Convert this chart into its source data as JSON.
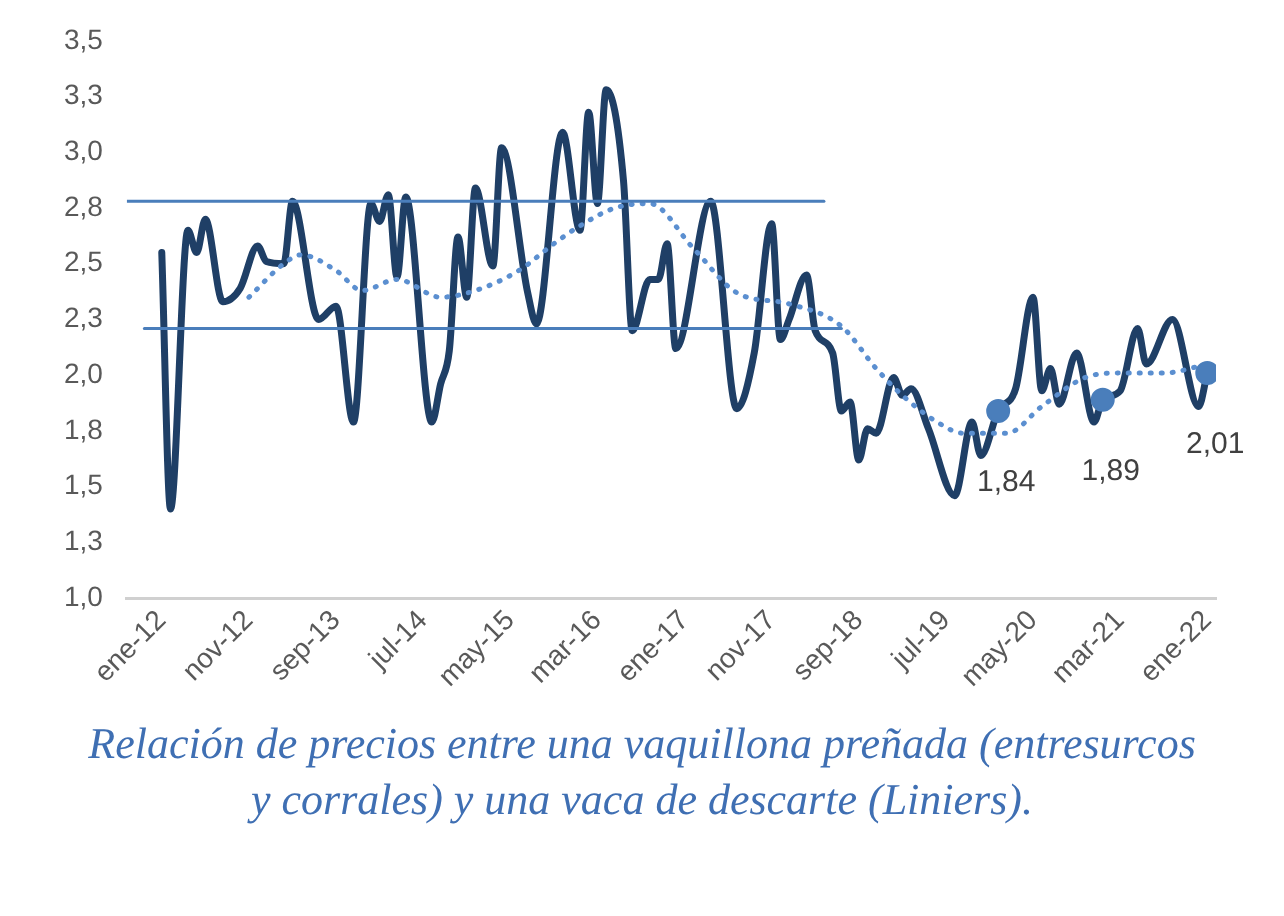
{
  "chart_data": {
    "type": "line",
    "title": "Relación de precios entre una vaquillona preñada (entresurcos y corrales) y una vaca de descarte (Liniers).",
    "xlim": [
      "2011-09",
      "2022-02"
    ],
    "xticks": [
      {
        "value": "2012-01",
        "label": "ene-12"
      },
      {
        "value": "2012-11",
        "label": "nov-12"
      },
      {
        "value": "2013-09",
        "label": "sep-13"
      },
      {
        "value": "2014-07",
        "label": "jul-14"
      },
      {
        "value": "2015-05",
        "label": "may-15"
      },
      {
        "value": "2016-03",
        "label": "mar-16"
      },
      {
        "value": "2017-01",
        "label": "ene-17"
      },
      {
        "value": "2017-11",
        "label": "nov-17"
      },
      {
        "value": "2018-09",
        "label": "sep-18"
      },
      {
        "value": "2019-07",
        "label": "jul-19"
      },
      {
        "value": "2020-05",
        "label": "may-20"
      },
      {
        "value": "2021-03",
        "label": "mar-21"
      },
      {
        "value": "2022-01",
        "label": "ene-22"
      }
    ],
    "ylim": [
      1.0,
      3.5
    ],
    "yticks": [
      {
        "value": 1.0,
        "label": "1,0"
      },
      {
        "value": 1.25,
        "label": "1,3"
      },
      {
        "value": 1.5,
        "label": "1,5"
      },
      {
        "value": 1.75,
        "label": "1,8"
      },
      {
        "value": 2.0,
        "label": "2,0"
      },
      {
        "value": 2.25,
        "label": "2,3"
      },
      {
        "value": 2.5,
        "label": "2,5"
      },
      {
        "value": 2.75,
        "label": "2,8"
      },
      {
        "value": 3.0,
        "label": "3,0"
      },
      {
        "value": 3.25,
        "label": "3,3"
      },
      {
        "value": 3.5,
        "label": "3,5"
      }
    ],
    "grid": false,
    "legend": false,
    "series": [
      {
        "type": "line",
        "color": "#1f3f66",
        "marker": "none",
        "line_style": "solid",
        "x": [
          "2012-01",
          "2012-02",
          "2012-04",
          "2012-05",
          "2012-06",
          "2012-08",
          "2012-10",
          "2012-12",
          "2013-01",
          "2013-03",
          "2013-04",
          "2013-07",
          "2013-09",
          "2013-11",
          "2014-01",
          "2014-02",
          "2014-03",
          "2014-04",
          "2014-05",
          "2014-08",
          "2014-09",
          "2014-10",
          "2014-11",
          "2014-12",
          "2015-01",
          "2015-03",
          "2015-04",
          "2015-07",
          "2015-08",
          "2015-11",
          "2016-01",
          "2016-02",
          "2016-03",
          "2016-04",
          "2016-06",
          "2016-07",
          "2016-09",
          "2016-10",
          "2016-11",
          "2016-12",
          "2017-04",
          "2017-07",
          "2017-09",
          "2017-11",
          "2017-12",
          "2018-01",
          "2018-03",
          "2018-04",
          "2018-06",
          "2018-07",
          "2018-08",
          "2018-09",
          "2018-10",
          "2018-11",
          "2019-01",
          "2019-02",
          "2019-03",
          "2019-05",
          "2019-08",
          "2019-10",
          "2019-11",
          "2020-01",
          "2020-03",
          "2020-05",
          "2020-06",
          "2020-07",
          "2020-08",
          "2020-10",
          "2020-12",
          "2021-01",
          "2021-03",
          "2021-05",
          "2021-06",
          "2021-09",
          "2021-12",
          "2022-01"
        ],
        "values": [
          2.55,
          1.4,
          2.65,
          2.55,
          2.7,
          2.33,
          2.39,
          2.58,
          2.51,
          2.5,
          2.78,
          2.25,
          2.31,
          1.79,
          2.77,
          2.69,
          2.81,
          2.44,
          2.8,
          1.79,
          1.96,
          2.11,
          2.62,
          2.35,
          2.84,
          2.49,
          3.02,
          2.37,
          2.23,
          3.09,
          2.65,
          3.18,
          2.77,
          3.28,
          2.87,
          2.2,
          2.43,
          2.43,
          2.59,
          2.12,
          2.78,
          1.85,
          2.1,
          2.68,
          2.16,
          2.25,
          2.45,
          2.2,
          2.1,
          1.84,
          1.88,
          1.62,
          1.76,
          1.74,
          1.99,
          1.91,
          1.94,
          1.76,
          1.46,
          1.79,
          1.64,
          1.84,
          1.94,
          2.35,
          1.93,
          2.03,
          1.87,
          2.1,
          1.79,
          1.89,
          1.93,
          2.21,
          2.05,
          2.25,
          1.86,
          2.01
        ]
      },
      {
        "type": "line",
        "color": "#5b8fd0",
        "marker": "none",
        "line_style": "dotted",
        "x": [
          "2012-11",
          "2013-03",
          "2013-05",
          "2013-09",
          "2013-12",
          "2014-04",
          "2014-09",
          "2015-01",
          "2015-06",
          "2015-10",
          "2016-01",
          "2016-05",
          "2016-09",
          "2017-02",
          "2017-07",
          "2018-01",
          "2018-07",
          "2018-11",
          "2019-02",
          "2019-06",
          "2019-09",
          "2020-02",
          "2020-06",
          "2020-11",
          "2021-03",
          "2021-08",
          "2022-01"
        ],
        "values": [
          2.35,
          2.5,
          2.54,
          2.47,
          2.38,
          2.43,
          2.35,
          2.38,
          2.47,
          2.59,
          2.67,
          2.75,
          2.77,
          2.57,
          2.37,
          2.32,
          2.22,
          2.03,
          1.91,
          1.79,
          1.74,
          1.74,
          1.86,
          1.99,
          2.01,
          2.01,
          2.05
        ]
      },
      {
        "type": "line",
        "color": "#4a7ebb",
        "marker": "none",
        "line_style": "solid",
        "x": [
          "2011-09",
          "2018-05"
        ],
        "values": [
          2.78,
          2.78
        ]
      },
      {
        "type": "line",
        "color": "#4a7ebb",
        "marker": "none",
        "line_style": "solid",
        "x": [
          "2011-11",
          "2018-07"
        ],
        "values": [
          2.21,
          2.21
        ]
      },
      {
        "type": "scatter",
        "color": "#4a7ebb",
        "marker": "circle",
        "x": [
          "2020-01",
          "2021-01",
          "2022-01"
        ],
        "values": [
          1.84,
          1.89,
          2.01
        ],
        "value_labels": [
          "1,84",
          "1,89",
          "2,01"
        ]
      }
    ]
  }
}
